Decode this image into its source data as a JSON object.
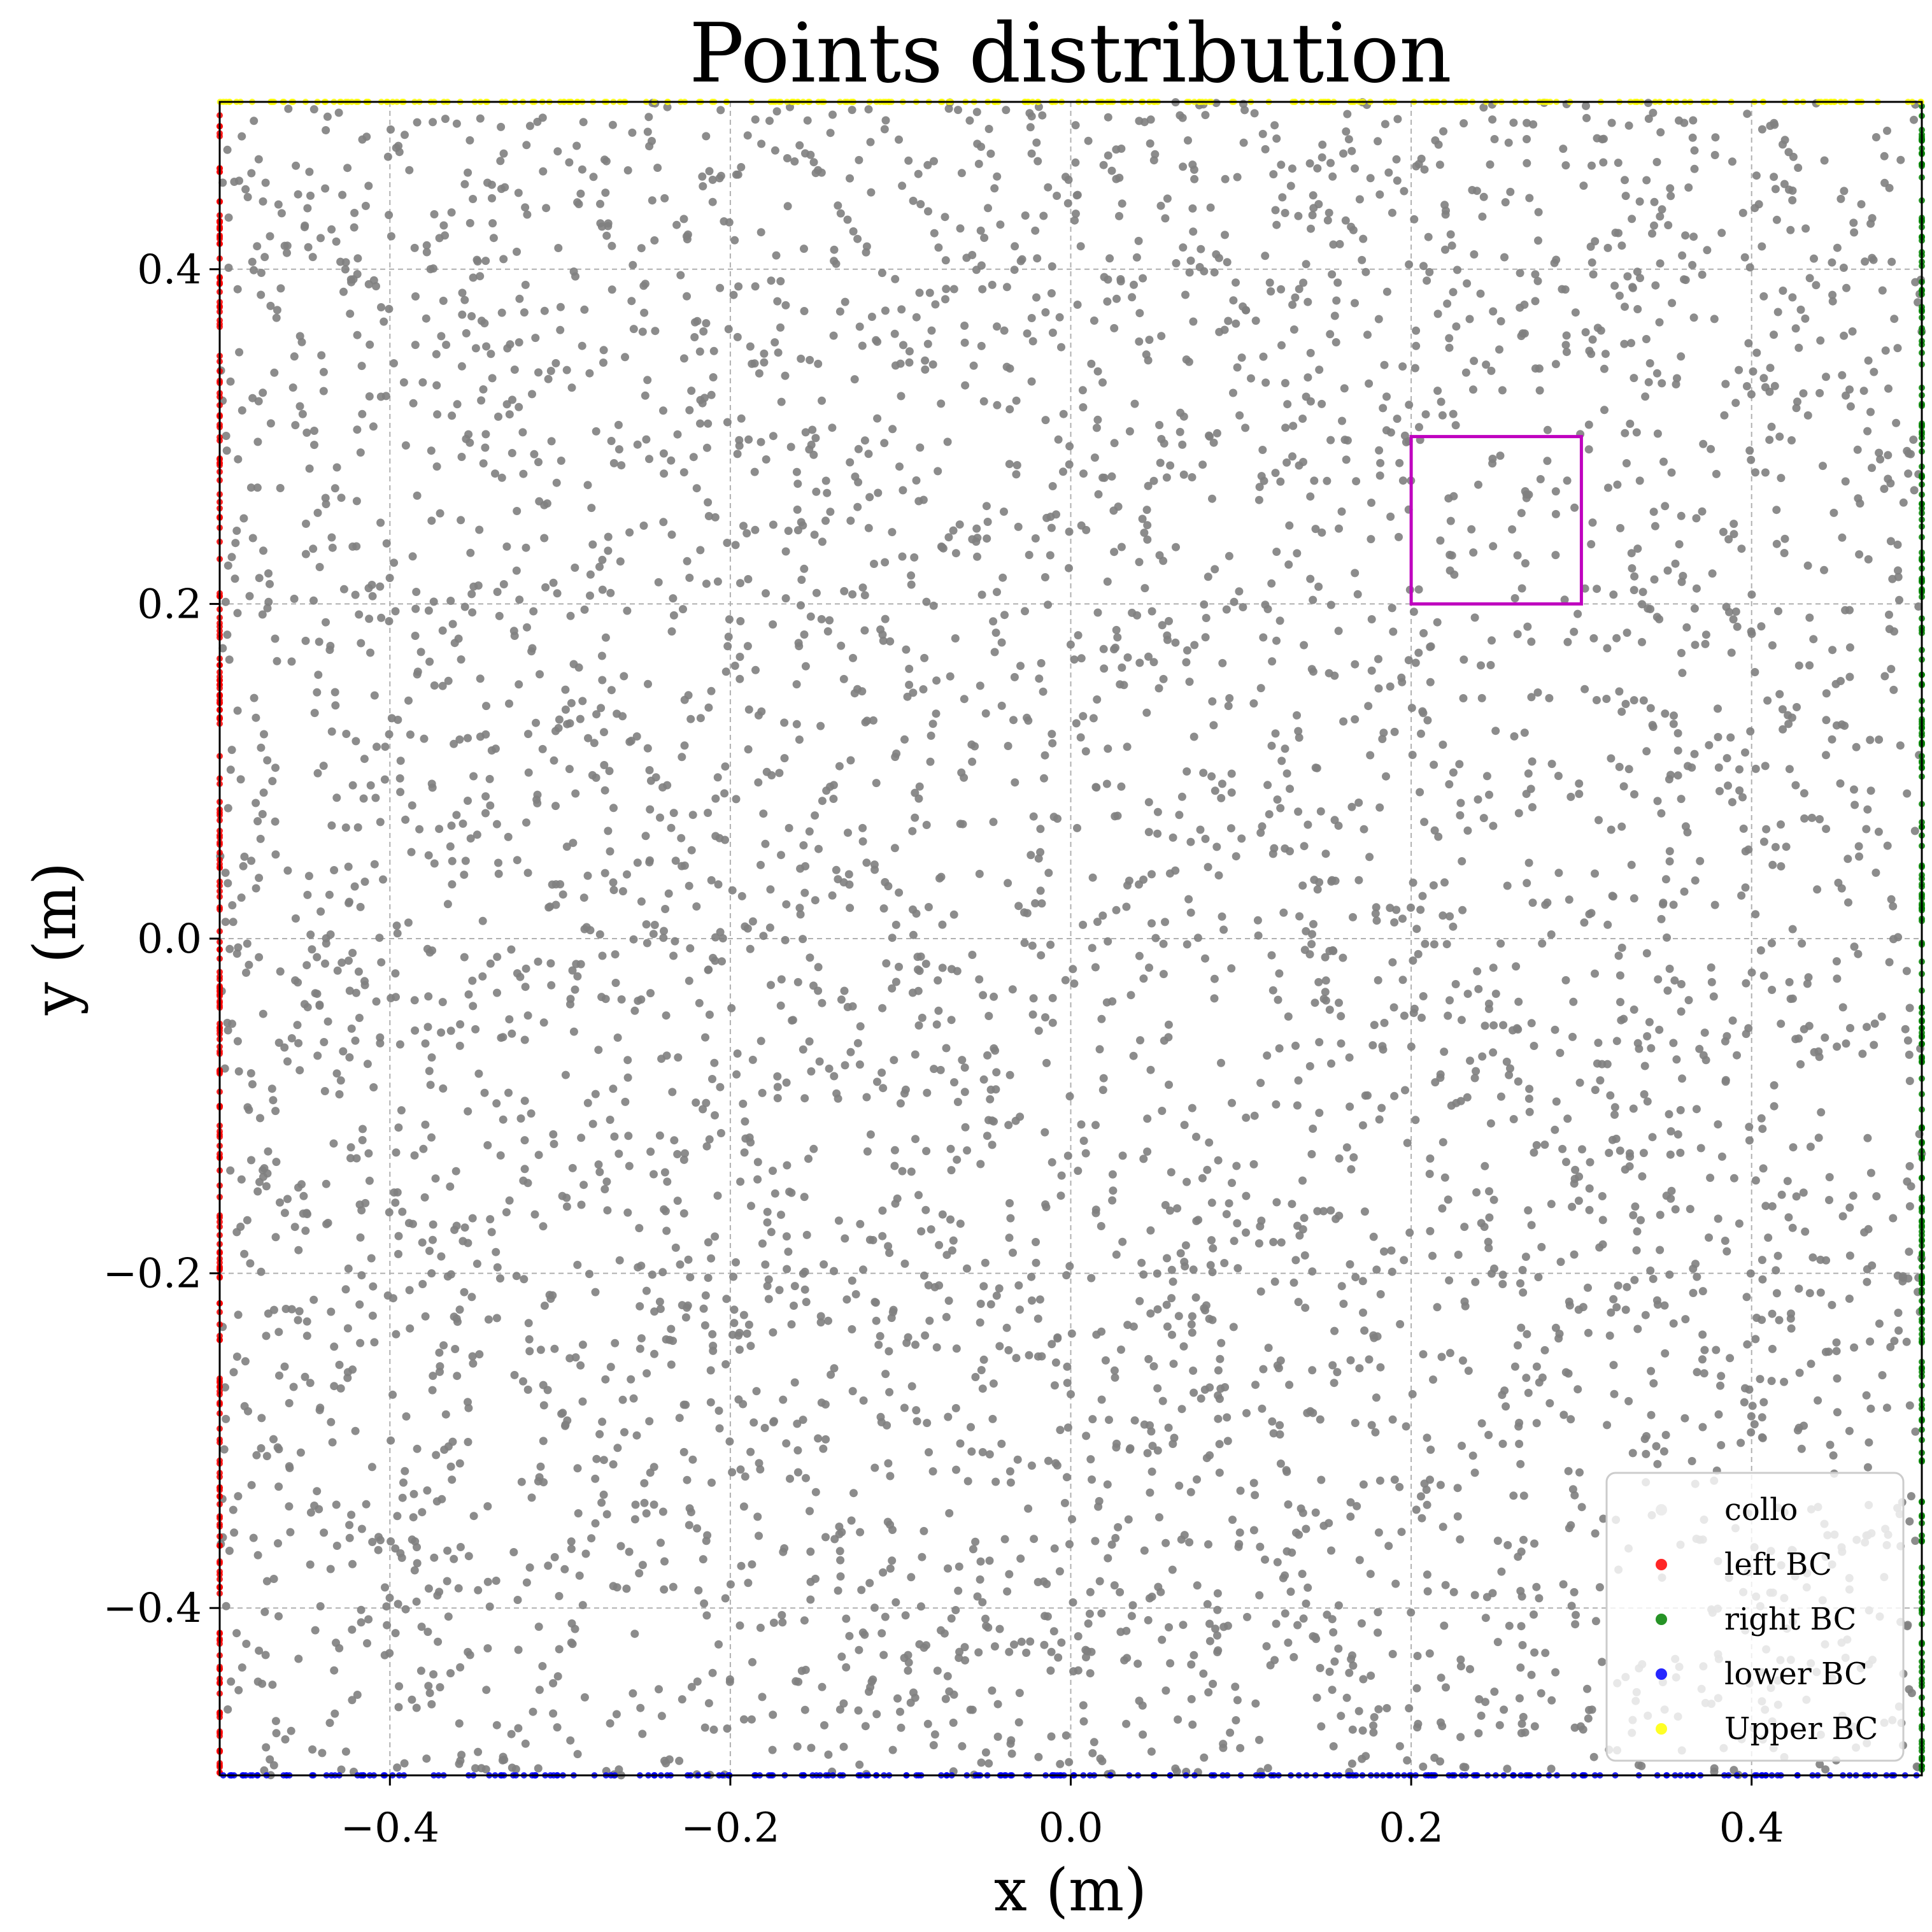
{
  "chart_data": {
    "type": "scatter",
    "title": "Points distribution",
    "xlabel": "x (m)",
    "ylabel": "y (m)",
    "xlim": [
      -0.5,
      0.5
    ],
    "ylim": [
      -0.5,
      0.5
    ],
    "xticks": [
      -0.4,
      -0.2,
      0.0,
      0.2,
      0.4
    ],
    "xtick_labels": [
      "−0.4",
      "−0.2",
      "0.0",
      "0.2",
      "0.4"
    ],
    "yticks": [
      -0.4,
      -0.2,
      0.0,
      0.2,
      0.4
    ],
    "ytick_labels": [
      "−0.4",
      "−0.2",
      "0.0",
      "0.2",
      "0.4"
    ],
    "grid": true,
    "grid_style": "dashed",
    "legend_placement": "lower-right",
    "series": [
      {
        "name": "collo",
        "color": "#808080",
        "region": "interior",
        "x_range": [
          -0.5,
          0.5
        ],
        "y_range": [
          -0.5,
          0.5
        ],
        "approx_count": 5000
      },
      {
        "name": "left BC",
        "color": "#ff0000",
        "region": "edge",
        "x": -0.5,
        "y_range": [
          -0.5,
          0.5
        ]
      },
      {
        "name": "right BC",
        "color": "#008000",
        "region": "edge",
        "x": 0.5,
        "y_range": [
          -0.5,
          0.5
        ]
      },
      {
        "name": "lower BC",
        "color": "#0000ff",
        "region": "edge",
        "y": -0.5,
        "x_range": [
          -0.5,
          0.5
        ]
      },
      {
        "name": "Upper BC",
        "color": "#ffff00",
        "region": "edge",
        "y": 0.5,
        "x_range": [
          -0.5,
          0.5
        ]
      }
    ],
    "annotations": [
      {
        "type": "rectangle",
        "color": "#bf00bf",
        "x_range": [
          0.2,
          0.3
        ],
        "y_range": [
          0.2,
          0.3
        ]
      }
    ]
  }
}
